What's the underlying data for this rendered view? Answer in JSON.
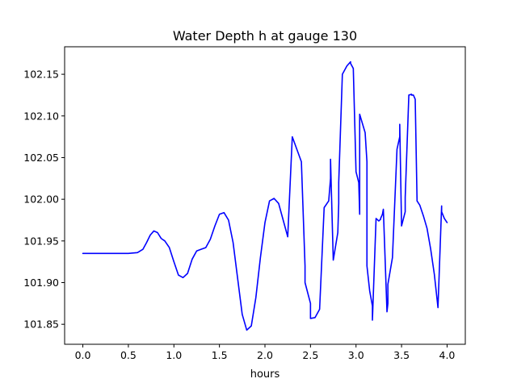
{
  "chart_data": {
    "type": "line",
    "title": "Water Depth h at gauge 130",
    "xlabel": "hours",
    "ylabel": "",
    "xlim": [
      -0.2,
      4.2
    ],
    "ylim": [
      101.826,
      102.183
    ],
    "grid": false,
    "line_color": "#0000ff",
    "xticks": [
      0.0,
      0.5,
      1.0,
      1.5,
      2.0,
      2.5,
      3.0,
      3.5,
      4.0
    ],
    "xtick_labels": [
      "0.0",
      "0.5",
      "1.0",
      "1.5",
      "2.0",
      "2.5",
      "3.0",
      "3.5",
      "4.0"
    ],
    "yticks": [
      101.85,
      101.9,
      101.95,
      102.0,
      102.05,
      102.1,
      102.15
    ],
    "ytick_labels": [
      "101.85",
      "101.90",
      "101.95",
      "102.00",
      "102.05",
      "102.10",
      "102.15"
    ],
    "series": [
      {
        "x": [
          0.0,
          0.3,
          0.5,
          0.6,
          0.66,
          0.7,
          0.74,
          0.78,
          0.82,
          0.86,
          0.9,
          0.95,
          1.0,
          1.05,
          1.1,
          1.15,
          1.2,
          1.25,
          1.3,
          1.35,
          1.4,
          1.45,
          1.5,
          1.55,
          1.6,
          1.65,
          1.7,
          1.75,
          1.8,
          1.85,
          1.9,
          1.95,
          2.0,
          2.05,
          2.1,
          2.15,
          2.2,
          2.25,
          2.3,
          2.35,
          2.4,
          2.44,
          2.44,
          2.5,
          2.5,
          2.55,
          2.6,
          2.65,
          2.7,
          2.72,
          2.72,
          2.75,
          2.8,
          2.81,
          2.81,
          2.85,
          2.9,
          2.94,
          2.94,
          2.97,
          3.0,
          3.03,
          3.04,
          3.04,
          3.1,
          3.12,
          3.12,
          3.15,
          3.18,
          3.18,
          3.22,
          3.25,
          3.27,
          3.27,
          3.29,
          3.3,
          3.34,
          3.35,
          3.35,
          3.4,
          3.45,
          3.48,
          3.48,
          3.5,
          3.54,
          3.54,
          3.58,
          3.61,
          3.61,
          3.63,
          3.65,
          3.67,
          3.67,
          3.7,
          3.74,
          3.78,
          3.82,
          3.86,
          3.9,
          3.94,
          3.94,
          3.97,
          4.0
        ],
        "y": [
          101.935,
          101.935,
          101.935,
          101.936,
          101.94,
          101.948,
          101.957,
          101.962,
          101.96,
          101.953,
          101.95,
          101.942,
          101.925,
          101.909,
          101.906,
          101.911,
          101.928,
          101.938,
          101.94,
          101.942,
          101.952,
          101.968,
          101.982,
          101.984,
          101.975,
          101.948,
          101.905,
          101.862,
          101.843,
          101.848,
          101.882,
          101.93,
          101.972,
          101.998,
          102.001,
          101.995,
          101.975,
          101.955,
          102.075,
          102.06,
          102.045,
          101.92,
          101.9,
          101.875,
          101.857,
          101.858,
          101.868,
          101.99,
          101.998,
          102.025,
          102.048,
          101.927,
          101.96,
          101.995,
          102.02,
          102.15,
          102.16,
          102.165,
          102.163,
          102.157,
          102.033,
          102.02,
          101.982,
          102.102,
          102.08,
          102.045,
          101.92,
          101.89,
          101.872,
          101.855,
          101.977,
          101.974,
          101.976,
          101.977,
          101.982,
          101.988,
          101.865,
          101.875,
          101.898,
          101.93,
          102.06,
          102.075,
          102.09,
          101.968,
          101.985,
          102.002,
          102.125,
          102.126,
          102.125,
          102.125,
          102.12,
          102.0,
          101.998,
          101.993,
          101.98,
          101.965,
          101.94,
          101.91,
          101.87,
          101.992,
          101.985,
          101.977,
          101.972
        ],
        "_note_": ""
      }
    ]
  }
}
